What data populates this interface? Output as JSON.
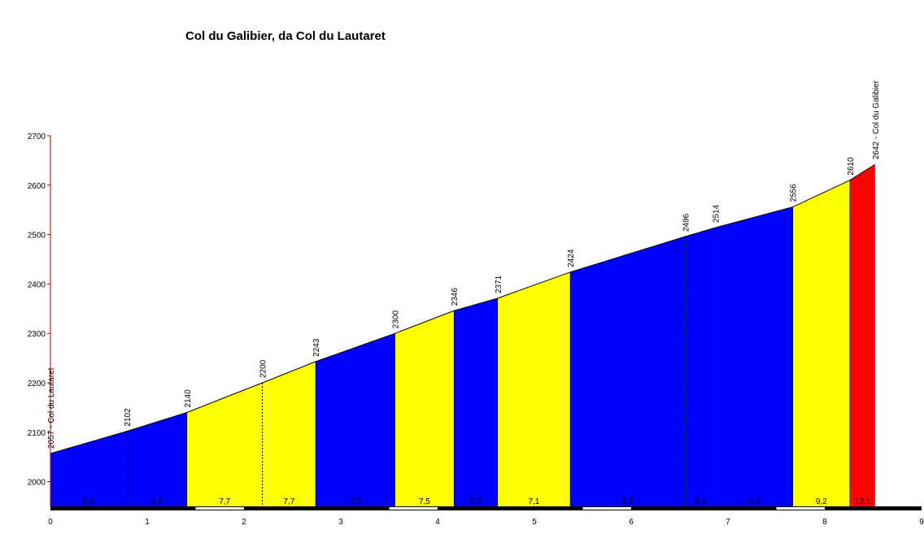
{
  "chart_data": {
    "type": "area",
    "title": "Col du Galibier, da Col du Lautaret",
    "xlabel": "",
    "ylabel": "",
    "xlim": [
      0,
      9
    ],
    "ylim": [
      1950,
      2700
    ],
    "x_ticks": [
      0,
      1,
      2,
      3,
      4,
      5,
      6,
      7,
      8,
      9
    ],
    "y_ticks": [
      2000,
      2100,
      2200,
      2300,
      2400,
      2500,
      2600,
      2700
    ],
    "points": [
      {
        "x": 0.0,
        "y": 2057,
        "label": "2057 - Col du Lautaret"
      },
      {
        "x": 0.79,
        "y": 2102,
        "label": "2102"
      },
      {
        "x": 1.41,
        "y": 2140,
        "label": "2140"
      },
      {
        "x": 2.19,
        "y": 2200,
        "label": "2200"
      },
      {
        "x": 2.74,
        "y": 2243,
        "label": "2243"
      },
      {
        "x": 3.56,
        "y": 2300,
        "label": "2300"
      },
      {
        "x": 4.17,
        "y": 2346,
        "label": "2346"
      },
      {
        "x": 4.62,
        "y": 2371,
        "label": "2371"
      },
      {
        "x": 5.37,
        "y": 2424,
        "label": "2424"
      },
      {
        "x": 6.56,
        "y": 2496,
        "label": "2496"
      },
      {
        "x": 6.87,
        "y": 2514,
        "label": "2514"
      },
      {
        "x": 7.67,
        "y": 2556,
        "label": "2556"
      },
      {
        "x": 8.26,
        "y": 2610,
        "label": "2610"
      },
      {
        "x": 8.52,
        "y": 2642,
        "label": "2642 - Col du Galibier"
      }
    ],
    "segments": [
      {
        "from": 0.0,
        "to": 0.79,
        "gradient": "5,8",
        "color": "#0000FF",
        "dashed_end": true
      },
      {
        "from": 0.79,
        "to": 1.41,
        "gradient": "6,2",
        "color": "#0000FF",
        "dashed_end": true
      },
      {
        "from": 1.41,
        "to": 2.19,
        "gradient": "7,7",
        "color": "#FFFF00",
        "dashed_end": true
      },
      {
        "from": 2.19,
        "to": 2.74,
        "gradient": "7,7",
        "color": "#FFFF00",
        "dashed_end": true
      },
      {
        "from": 2.74,
        "to": 3.56,
        "gradient": "7,0",
        "color": "#0000FF",
        "dashed_end": true
      },
      {
        "from": 3.56,
        "to": 4.17,
        "gradient": "7,5",
        "color": "#FFFF00",
        "dashed_end": true
      },
      {
        "from": 4.17,
        "to": 4.62,
        "gradient": "5,6",
        "color": "#0000FF",
        "dashed_end": true
      },
      {
        "from": 4.62,
        "to": 5.37,
        "gradient": "7,1",
        "color": "#FFFF00",
        "dashed_end": true
      },
      {
        "from": 5.37,
        "to": 6.56,
        "gradient": "6,1",
        "color": "#0000FF",
        "dashed_end": true
      },
      {
        "from": 6.56,
        "to": 6.87,
        "gradient": "5,5",
        "color": "#0000FF",
        "dashed_end": true
      },
      {
        "from": 6.87,
        "to": 7.67,
        "gradient": "5,3",
        "color": "#0000FF",
        "dashed_end": true
      },
      {
        "from": 7.67,
        "to": 8.26,
        "gradient": "9,2",
        "color": "#FFFF00",
        "dashed_end": true
      },
      {
        "from": 8.26,
        "to": 8.52,
        "gradient": "12,1",
        "color": "#FF0000",
        "dashed_end": false
      }
    ],
    "grid": false,
    "legend": "none"
  }
}
